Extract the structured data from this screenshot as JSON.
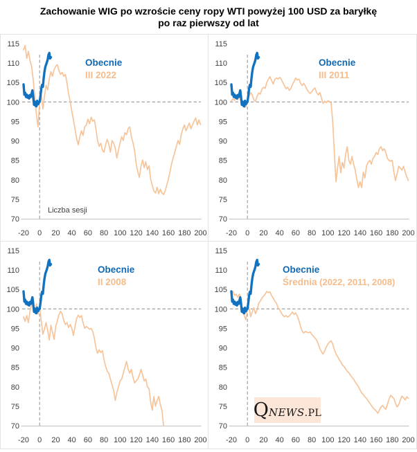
{
  "title": {
    "line1": "Zachowanie WIG po wzroście ceny ropy WTI powyżej 100 USD za baryłkę",
    "line2": "po raz pierwszy od lat"
  },
  "logo": {
    "q": "Q",
    "news": "NEWS",
    "pl": ".PL",
    "background": "#fbe6d8"
  },
  "colors": {
    "obecnie_blue": "#1272bf",
    "obecnie_label_blue": "#1169b4",
    "period_orange": "#f7c49a",
    "period_label_orange": "#f5bc8c",
    "dash_gray": "#a9a9a9",
    "axis_gray": "#bfbfbf",
    "tick_text": "#3d3d3d",
    "note_text": "#404040"
  },
  "chart_data": {
    "type": "line",
    "xlabel": "Liczba sesji",
    "ylabel": "",
    "xlim": [
      -20,
      200
    ],
    "ylim": [
      70,
      115
    ],
    "xticks": [
      -20,
      0,
      20,
      40,
      60,
      80,
      100,
      120,
      140,
      160,
      180,
      200
    ],
    "yticks": [
      115,
      110,
      105,
      100,
      95,
      90,
      85,
      80,
      75,
      70
    ],
    "grid": false,
    "legend_position": "inside-top",
    "reference_lines": {
      "horizontal_y": 100,
      "vertical_x": 0,
      "style": "dashed"
    },
    "shared_series": {
      "name": "Obecnie",
      "x_start": -20,
      "x_step": 1,
      "values": [
        104.5,
        101.9,
        102.4,
        101.3,
        101.9,
        101.1,
        101.6,
        100.9,
        101.8,
        101.3,
        102.1,
        103.0,
        101.4,
        99.3,
        100.1,
        99.0,
        98.9,
        100.3,
        99.4,
        99.9,
        100.0,
        101.5,
        103.3,
        104.4,
        103.9,
        106.0,
        107.8,
        109.0,
        109.6,
        110.2,
        110.9,
        112.1,
        112.6,
        111.2,
        111.5
      ]
    },
    "panels": [
      {
        "label": "III 2022",
        "legend_x": 122,
        "xaxis_note": "Liczba sesji",
        "series": {
          "x_start": -20,
          "x_step": 2,
          "values": [
            113.4,
            114.5,
            111.2,
            113.0,
            110.6,
            109.2,
            105.8,
            101.2,
            96.8,
            93.6,
            100.2,
            101.8,
            98.2,
            101.5,
            104.3,
            103.1,
            106.0,
            107.8,
            106.6,
            108.3,
            109.2,
            109.6,
            108.1,
            107.1,
            107.6,
            106.6,
            107.1,
            104.9,
            102.1,
            100.1,
            97.6,
            95.4,
            93.1,
            90.6,
            89.0,
            91.1,
            92.6,
            91.4,
            93.6,
            94.1,
            95.6,
            94.4,
            96.1,
            95.1,
            95.4,
            93.1,
            90.1,
            88.6,
            89.4,
            87.6,
            87.1,
            89.1,
            90.4,
            89.1,
            87.1,
            90.1,
            89.4,
            88.1,
            85.6,
            87.6,
            89.6,
            91.1,
            90.1,
            92.1,
            91.6,
            93.1,
            93.6,
            91.1,
            89.6,
            87.6,
            84.1,
            82.1,
            80.6,
            83.6,
            85.1,
            83.1,
            84.6,
            82.6,
            83.6,
            80.1,
            78.6,
            77.1,
            76.6,
            78.1,
            76.4,
            77.6,
            76.6,
            76.2,
            77.1,
            78.6,
            80.1,
            82.1,
            84.1,
            85.6,
            87.1,
            88.6,
            90.1,
            89.1,
            91.6,
            93.1,
            94.1,
            92.6,
            93.6,
            94.6,
            93.1,
            94.1,
            95.1,
            95.9,
            94.1,
            95.4,
            94.2
          ]
        }
      },
      {
        "label": "III 2011",
        "legend_x": 159,
        "series": {
          "x_start": -20,
          "x_step": 2,
          "values": [
            100.3,
            100.8,
            100.4,
            101.3,
            100.6,
            101.5,
            100.2,
            99.3,
            98.6,
            98.8,
            100.0,
            101.5,
            102.4,
            101.8,
            100.5,
            100.2,
            101.5,
            102.3,
            102.0,
            103.3,
            103.8,
            103.5,
            105.0,
            105.8,
            106.5,
            105.5,
            104.6,
            105.8,
            106.2,
            105.9,
            106.3,
            105.9,
            105.0,
            104.2,
            103.4,
            103.8,
            103.0,
            103.5,
            104.5,
            105.3,
            106.2,
            105.6,
            105.9,
            104.8,
            104.2,
            104.8,
            104.1,
            103.2,
            102.6,
            102.2,
            102.6,
            103.3,
            103.6,
            102.4,
            101.8,
            102.4,
            101.0,
            99.6,
            100.2,
            99.8,
            100.3,
            100.1,
            99.7,
            95.0,
            87.0,
            79.5,
            83.0,
            86.0,
            81.8,
            84.5,
            83.0,
            86.5,
            88.5,
            85.0,
            84.0,
            86.0,
            84.0,
            82.5,
            80.0,
            78.0,
            79.5,
            78.0,
            82.0,
            80.5,
            83.5,
            84.5,
            85.0,
            84.0,
            85.5,
            86.0,
            87.0,
            86.5,
            88.0,
            88.5,
            87.5,
            88.0,
            87.0,
            85.5,
            85.0,
            84.8,
            85.0,
            82.0,
            79.8,
            81.5,
            83.5,
            83.0,
            82.5,
            83.5,
            82.0,
            80.8,
            79.8
          ]
        }
      },
      {
        "label": "II 2008",
        "legend_x": 140,
        "series": {
          "x_start": -20,
          "x_step": 2,
          "values": [
            98.0,
            96.8,
            98.3,
            96.5,
            99.5,
            101.0,
            102.0,
            99.2,
            101.3,
            98.7,
            100.6,
            97.0,
            93.5,
            94.8,
            96.5,
            94.5,
            92.0,
            95.8,
            94.0,
            92.2,
            95.5,
            97.0,
            98.5,
            99.4,
            98.8,
            97.0,
            96.0,
            96.5,
            95.2,
            96.0,
            95.0,
            93.2,
            95.5,
            97.5,
            98.4,
            97.8,
            98.3,
            96.5,
            95.0,
            95.5,
            95.2,
            94.8,
            95.0,
            94.2,
            92.5,
            90.0,
            88.6,
            89.5,
            88.8,
            89.3,
            87.0,
            85.2,
            84.0,
            83.5,
            82.0,
            80.5,
            79.0,
            76.5,
            78.5,
            80.0,
            81.5,
            82.0,
            83.5,
            85.0,
            86.5,
            84.5,
            83.5,
            84.5,
            82.5,
            81.0,
            81.5,
            82.0,
            83.0,
            84.5,
            83.0,
            81.5,
            82.0,
            80.0,
            79.5,
            76.0,
            74.0,
            77.5,
            75.0,
            76.5,
            77.5,
            75.5,
            74.0,
            70.0
          ]
        }
      },
      {
        "label": "Średnia",
        "label_suffix": " (2022, 2011, 2008)",
        "legend_x": 107,
        "has_logo": true,
        "series": {
          "x_start": -20,
          "x_step": 2,
          "values": [
            104.0,
            104.5,
            103.5,
            103.8,
            103.0,
            103.8,
            102.8,
            99.5,
            98.3,
            97.2,
            100.2,
            100.3,
            98.0,
            99.3,
            100.3,
            98.8,
            99.8,
            101.5,
            102.0,
            102.8,
            103.3,
            103.8,
            104.5,
            104.2,
            104.4,
            103.4,
            102.8,
            102.0,
            101.5,
            100.3,
            99.8,
            99.0,
            98.4,
            98.0,
            98.3,
            97.9,
            98.2,
            98.7,
            99.2,
            98.6,
            99.0,
            98.2,
            97.0,
            95.5,
            94.3,
            93.8,
            94.2,
            94.0,
            93.9,
            94.1,
            93.5,
            93.0,
            92.5,
            92.0,
            91.0,
            89.8,
            89.0,
            88.4,
            89.2,
            90.2,
            91.0,
            91.5,
            91.8,
            91.0,
            89.5,
            88.5,
            87.8,
            87.0,
            86.4,
            85.6,
            85.2,
            84.6,
            84.0,
            83.6,
            83.0,
            82.4,
            82.0,
            81.2,
            80.6,
            80.0,
            79.2,
            78.4,
            78.0,
            77.4,
            77.0,
            76.4,
            75.8,
            75.2,
            74.6,
            74.2,
            73.8,
            73.2,
            74.0,
            74.8,
            75.2,
            74.6,
            74.2,
            75.5,
            76.8,
            77.8,
            77.4,
            77.0,
            75.8,
            74.8,
            75.4,
            76.6,
            77.6,
            77.2,
            76.6,
            77.4,
            77.0
          ]
        }
      }
    ]
  }
}
